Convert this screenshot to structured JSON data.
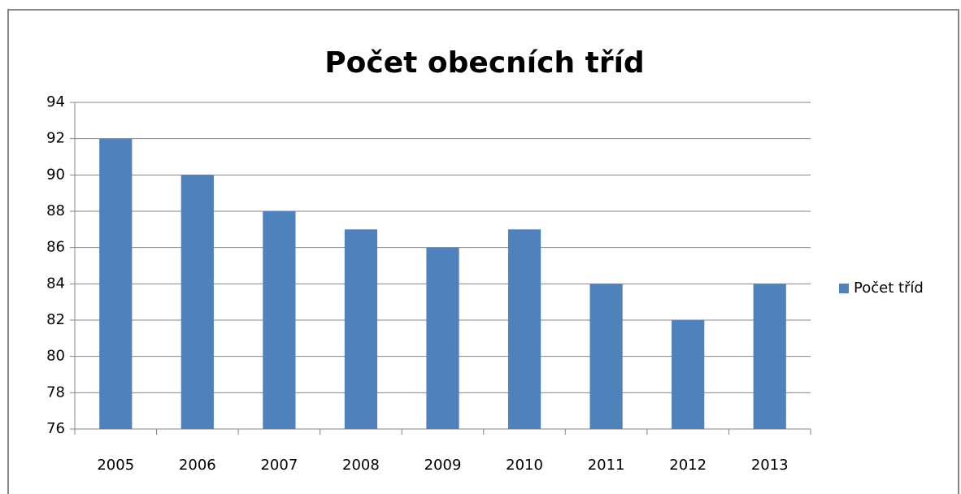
{
  "chart_data": {
    "type": "bar",
    "title": "Počet obecních tříd",
    "categories": [
      "2005",
      "2006",
      "2007",
      "2008",
      "2009",
      "2010",
      "2011",
      "2012",
      "2013"
    ],
    "series": [
      {
        "name": "Počet tříd",
        "color": "#4f81bd",
        "values": [
          92,
          90,
          88,
          87,
          86,
          87,
          84,
          82,
          84
        ]
      }
    ],
    "ylim": [
      76,
      94
    ],
    "yticks": [
      76,
      78,
      80,
      82,
      84,
      86,
      88,
      90,
      92,
      94
    ],
    "grid": true,
    "legend": "right"
  }
}
